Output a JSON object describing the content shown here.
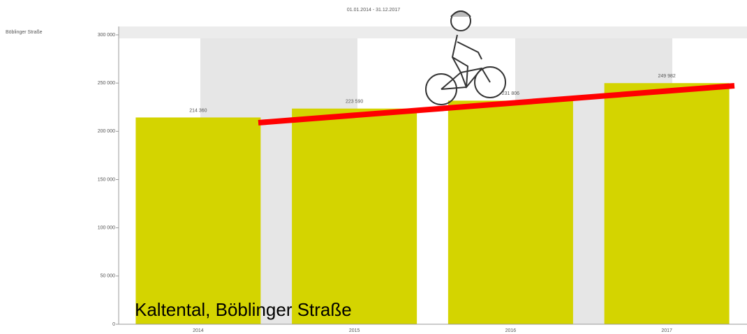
{
  "chart_data": {
    "type": "bar",
    "title": "01.01.2014 - 31.12.2017",
    "station": "Böblinger Straße",
    "annotation": "Kaltental, Böblinger Straße",
    "categories": [
      "2014",
      "2015",
      "2016",
      "2017"
    ],
    "values": [
      214360,
      223590,
      231806,
      249982
    ],
    "value_labels": [
      "214 360",
      "223 590",
      "231 806",
      "249 982"
    ],
    "color": "#d4d400",
    "ylim": [
      0,
      300000
    ],
    "yticks": [
      0,
      {
        "value": 50000,
        "label": "50 000"
      },
      {
        "value": 100000,
        "label": "100 000"
      },
      {
        "value": 150000,
        "label": "150 000"
      },
      {
        "value": 200000,
        "label": "200 000"
      },
      {
        "value": 250000,
        "label": "250 000"
      },
      {
        "value": 300000,
        "label": "300 000"
      }
    ],
    "grid": false
  }
}
